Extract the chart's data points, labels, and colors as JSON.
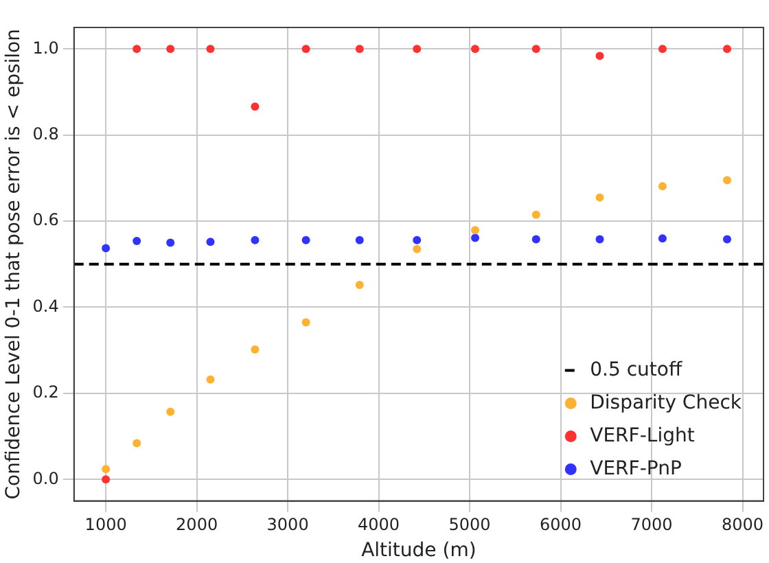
{
  "chart_data": {
    "type": "scatter",
    "xlabel": "Altitude (m)",
    "ylabel": "Confidence Level 0-1 that pose error is < epsilon",
    "x": [
      1000,
      1340,
      1710,
      2150,
      2640,
      3200,
      3790,
      4420,
      5060,
      5730,
      6430,
      7120,
      7830
    ],
    "series": [
      {
        "name": "Disparity Check",
        "color": "#ffb232",
        "values": [
          0.024,
          0.084,
          0.157,
          0.232,
          0.302,
          0.365,
          0.452,
          0.535,
          0.579,
          0.615,
          0.655,
          0.681,
          0.695
        ]
      },
      {
        "name": "VERF-Light",
        "color": "#ff3232",
        "values": [
          0,
          1,
          1,
          1,
          0.866,
          1,
          1,
          1,
          1,
          1,
          0.984,
          1,
          1
        ]
      },
      {
        "name": "VERF-PnP",
        "color": "#3232ff",
        "values": [
          0.537,
          0.554,
          0.55,
          0.552,
          0.556,
          0.556,
          0.556,
          0.556,
          0.561,
          0.558,
          0.558,
          0.56,
          0.558
        ]
      }
    ],
    "ref_lines": [
      {
        "axis": "y",
        "value": 0.5,
        "label": "0.5 cutoff",
        "color": "#000000",
        "line_style": "dashed"
      }
    ],
    "xlim": [
      650,
      8230
    ],
    "xticks": [
      1000,
      2000,
      3000,
      4000,
      5000,
      6000,
      7000,
      8000
    ],
    "ylim": [
      -0.05,
      1.05
    ],
    "yticks": [
      {
        "value": 0,
        "label": "0.0"
      },
      0.2,
      0.4,
      0.6,
      0.8,
      {
        "value": 1,
        "label": "1.0"
      }
    ],
    "grid": true,
    "legend": "bottom right",
    "marker": "circle"
  }
}
